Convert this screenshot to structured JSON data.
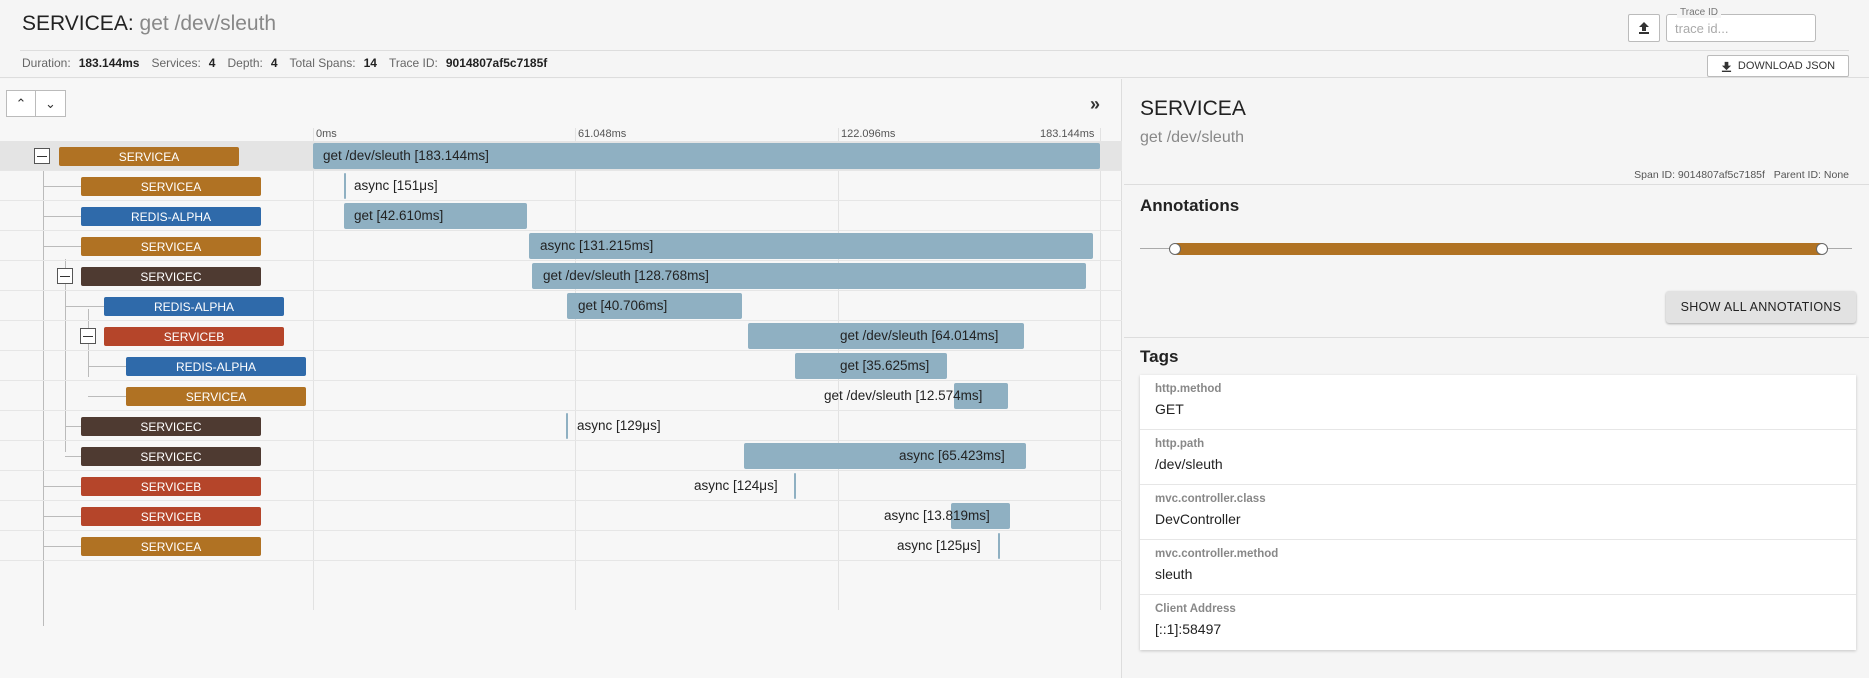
{
  "header": {
    "service": "SERVICEA",
    "separator": ":",
    "span_name": "get /dev/sleuth",
    "duration_label": "Duration:",
    "duration": "183.144ms",
    "services_label": "Services:",
    "services": "4",
    "depth_label": "Depth:",
    "depth": "4",
    "total_spans_label": "Total Spans:",
    "total_spans": "14",
    "trace_id_label": "Trace ID:",
    "trace_id": "9014807af5c7185f",
    "trace_input_label": "Trace ID",
    "trace_input_placeholder": "trace id...",
    "download_label": "DOWNLOAD JSON"
  },
  "timeline": {
    "ticks": [
      "0ms",
      "61.048ms",
      "122.096ms",
      "183.144ms"
    ],
    "rows": [
      {
        "service": "SERVICEA",
        "color": "#b07223",
        "label": "get /dev/sleuth [183.144ms]"
      },
      {
        "service": "SERVICEA",
        "color": "#b07223",
        "label": "async [151μs]"
      },
      {
        "service": "REDIS-ALPHA",
        "color": "#2f6aaa",
        "label": "get [42.610ms]"
      },
      {
        "service": "SERVICEA",
        "color": "#b07223",
        "label": "async [131.215ms]"
      },
      {
        "service": "SERVICEC",
        "color": "#4e3a31",
        "label": "get /dev/sleuth [128.768ms]"
      },
      {
        "service": "REDIS-ALPHA",
        "color": "#2f6aaa",
        "label": "get [40.706ms]"
      },
      {
        "service": "SERVICEB",
        "color": "#b5452a",
        "label": "get /dev/sleuth [64.014ms]"
      },
      {
        "service": "REDIS-ALPHA",
        "color": "#2f6aaa",
        "label": "get [35.625ms]"
      },
      {
        "service": "SERVICEA",
        "color": "#b07223",
        "label": "get /dev/sleuth [12.574ms]"
      },
      {
        "service": "SERVICEC",
        "color": "#4e3a31",
        "label": "async [129μs]"
      },
      {
        "service": "SERVICEC",
        "color": "#4e3a31",
        "label": "async [65.423ms]"
      },
      {
        "service": "SERVICEB",
        "color": "#b5452a",
        "label": "async [124μs]"
      },
      {
        "service": "SERVICEB",
        "color": "#b5452a",
        "label": "async [13.819ms]"
      },
      {
        "service": "SERVICEA",
        "color": "#b07223",
        "label": "async [125μs]"
      }
    ]
  },
  "detail": {
    "service": "SERVICEA",
    "span_name": "get /dev/sleuth",
    "span_id_label": "Span ID:",
    "span_id": "9014807af5c7185f",
    "parent_id_label": "Parent ID:",
    "parent_id": "None",
    "annotations_title": "Annotations",
    "show_all_label": "SHOW ALL ANNOTATIONS",
    "annotation_color": "#b07223",
    "tags_title": "Tags",
    "tags": [
      {
        "key": "http.method",
        "value": "GET"
      },
      {
        "key": "http.path",
        "value": "/dev/sleuth"
      },
      {
        "key": "mvc.controller.class",
        "value": "DevController"
      },
      {
        "key": "mvc.controller.method",
        "value": "sleuth"
      },
      {
        "key": "Client Address",
        "value": "[::1]:58497"
      }
    ]
  }
}
